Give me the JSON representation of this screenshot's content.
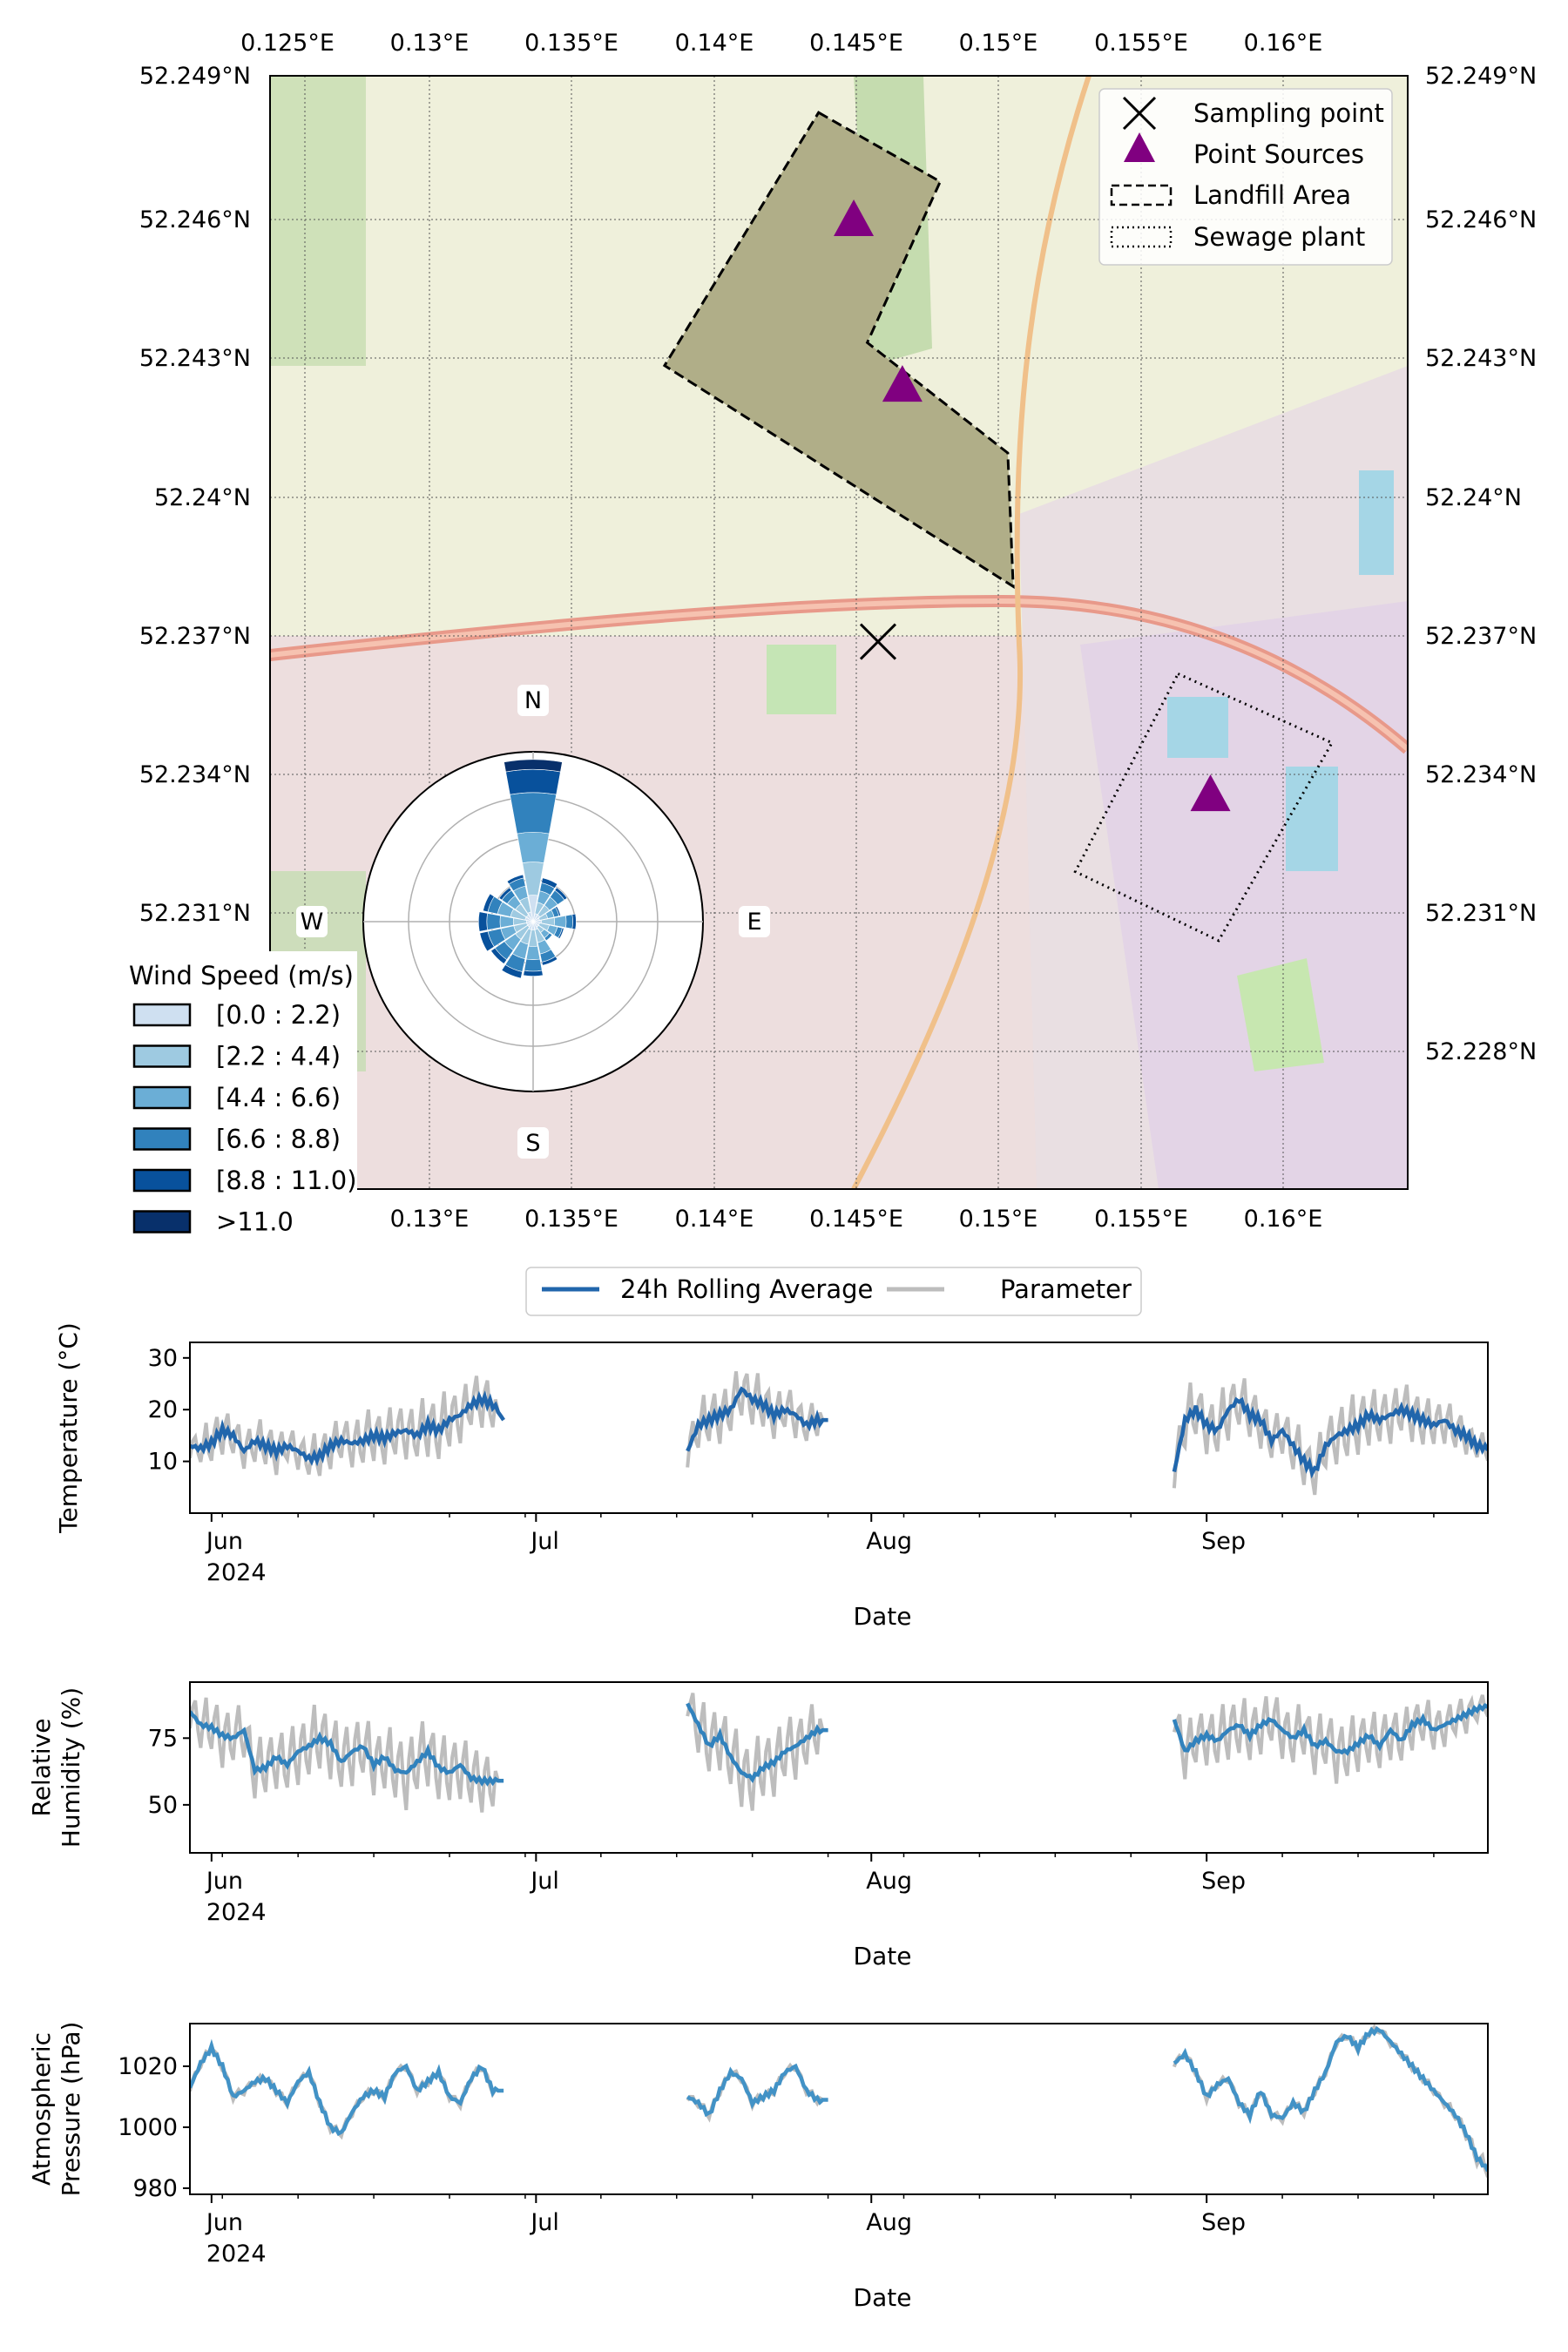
{
  "map": {
    "lon_ticks_top": [
      "0.125°E",
      "0.13°E",
      "0.135°E",
      "0.14°E",
      "0.145°E",
      "0.15°E",
      "0.155°E",
      "0.16°E"
    ],
    "lon_ticks_bottom": [
      "0.13°E",
      "0.135°E",
      "0.14°E",
      "0.145°E",
      "0.15°E",
      "0.155°E",
      "0.16°E"
    ],
    "lat_ticks": [
      "52.249°N",
      "52.246°N",
      "52.243°N",
      "52.24°N",
      "52.237°N",
      "52.234°N",
      "52.231°N",
      "52.228°N"
    ],
    "legend": {
      "sampling_point": "Sampling point",
      "point_sources": "Point Sources",
      "landfill": "Landfill Area",
      "sewage": "Sewage plant"
    },
    "colors": {
      "point_source": "#800080",
      "landfill_fill": "#b0ae88",
      "land": "#edefd9",
      "urban": "#ede0e0",
      "green": "#a8cf91"
    },
    "landfill_polygon": [
      [
        0.1425,
        52.2485
      ],
      [
        0.147,
        52.247
      ],
      [
        0.1443,
        52.2435
      ],
      [
        0.1495,
        52.2411
      ],
      [
        0.1497,
        52.2382
      ],
      [
        0.1368,
        52.243
      ]
    ],
    "sewage_polygon": [
      [
        0.1558,
        52.2363
      ],
      [
        0.1615,
        52.2348
      ],
      [
        0.1573,
        52.2305
      ],
      [
        0.152,
        52.232
      ]
    ],
    "point_sources": [
      [
        0.1438,
        52.2461
      ],
      [
        0.1456,
        52.2425
      ],
      [
        0.157,
        52.2336
      ]
    ],
    "sampling_point": [
      0.1447,
      52.237
    ]
  },
  "windrose": {
    "directions": [
      "N",
      "E",
      "S",
      "W"
    ],
    "legend_title": "Wind Speed (m/s)",
    "bins": [
      "[0.0 : 2.2)",
      "[2.2 : 4.4)",
      "[4.4 : 6.6)",
      "[6.6 : 8.8)",
      "[8.8 : 11.0)",
      ">11.0"
    ],
    "bin_colors": [
      "#cfe0f1",
      "#9ecae1",
      "#6baed6",
      "#3182bd",
      "#08519c",
      "#08306b"
    ],
    "sectors": [
      [
        0.16,
        0.36,
        0.54,
        0.78,
        0.92,
        0.98
      ],
      [
        0.05,
        0.12,
        0.19,
        0.24,
        0.27,
        0.27
      ],
      [
        0.05,
        0.12,
        0.18,
        0.23,
        0.25,
        0.25
      ],
      [
        0.04,
        0.09,
        0.13,
        0.16,
        0.17,
        0.17
      ],
      [
        0.05,
        0.13,
        0.2,
        0.24,
        0.26,
        0.26
      ],
      [
        0.04,
        0.1,
        0.15,
        0.18,
        0.19,
        0.19
      ],
      [
        0.04,
        0.08,
        0.12,
        0.14,
        0.14,
        0.14
      ],
      [
        0.05,
        0.13,
        0.2,
        0.25,
        0.27,
        0.27
      ],
      [
        0.05,
        0.15,
        0.23,
        0.3,
        0.33,
        0.33
      ],
      [
        0.05,
        0.14,
        0.23,
        0.31,
        0.35,
        0.35
      ],
      [
        0.04,
        0.13,
        0.21,
        0.28,
        0.31,
        0.31
      ],
      [
        0.04,
        0.12,
        0.2,
        0.28,
        0.33,
        0.33
      ],
      [
        0.04,
        0.12,
        0.2,
        0.28,
        0.33,
        0.33
      ],
      [
        0.05,
        0.14,
        0.22,
        0.28,
        0.31,
        0.31
      ],
      [
        0.05,
        0.13,
        0.19,
        0.23,
        0.25,
        0.25
      ],
      [
        0.06,
        0.15,
        0.22,
        0.27,
        0.29,
        0.29
      ]
    ]
  },
  "timeseries": {
    "legend": {
      "rolling": "24h Rolling Average",
      "parameter": "Parameter"
    },
    "x_ticks": [
      "Jun\n2024",
      "Jul",
      "Aug",
      "Sep"
    ],
    "xlabel": "Date",
    "date_range": [
      "2024-05-30",
      "2024-09-27"
    ],
    "parameter_color": "#bdbdbd",
    "panels": [
      {
        "ylabel": "Temperature (°C)",
        "yticks": [
          "10",
          "20",
          "30"
        ],
        "ylim": [
          0,
          33
        ],
        "rolling_color": "#2166ac",
        "segments": [
          {
            "start": "2024-05-30",
            "end": "2024-06-27",
            "avg": [
              13,
              12.5,
              13.5,
              16,
              15,
              12,
              14,
              13,
              12,
              13,
              12,
              10.5,
              11,
              13,
              14,
              13.5,
              14,
              15,
              14.5,
              15.5,
              16,
              15,
              17,
              16,
              18,
              19,
              21,
              22,
              21,
              18
            ],
            "amp": [
              3,
              3,
              5,
              5,
              5,
              4,
              5,
              5,
              5,
              4,
              4,
              4,
              5,
              5,
              5,
              5,
              6,
              6,
              6,
              6,
              6,
              6,
              7,
              7,
              7,
              6,
              6,
              6,
              6,
              0
            ]
          },
          {
            "start": "2024-07-15",
            "end": "2024-07-28",
            "avg": [
              12,
              17,
              18,
              19,
              20,
              24,
              22,
              21,
              19,
              20,
              19,
              17,
              18,
              18
            ],
            "amp": [
              4,
              5,
              6,
              6,
              6,
              6,
              6,
              6,
              5,
              5,
              5,
              4,
              4,
              0
            ]
          },
          {
            "start": "2024-08-29",
            "end": "2024-09-27",
            "avg": [
              8,
              18,
              20,
              17,
              16,
              20,
              22,
              19,
              18,
              14,
              16,
              13,
              10,
              8,
              13,
              15,
              16,
              17,
              19,
              18,
              19,
              20,
              19,
              18,
              17,
              18,
              16,
              15,
              13,
              12.5
            ],
            "amp": [
              4,
              6,
              7,
              6,
              6,
              7,
              6,
              6,
              6,
              5,
              5,
              6,
              6,
              5,
              6,
              6,
              7,
              7,
              7,
              6,
              6,
              6,
              6,
              6,
              5,
              5,
              5,
              4,
              3,
              3
            ]
          }
        ]
      },
      {
        "ylabel": "Relative Humidity (%)",
        "yticks": [
          "50",
          "75"
        ],
        "ylim": [
          32,
          96
        ],
        "rolling_color": "#3182bd",
        "segments": [
          {
            "start": "2024-05-30",
            "end": "2024-06-27",
            "avg": [
              85,
              80,
              79,
              76,
              75,
              78,
              63,
              64,
              68,
              65,
              70,
              72,
              75,
              73,
              66,
              70,
              72,
              65,
              68,
              63,
              62,
              66,
              70,
              64,
              62,
              65,
              60,
              59,
              59,
              59
            ],
            "amp": [
              8,
              10,
              12,
              13,
              12,
              12,
              13,
              13,
              13,
              13,
              14,
              14,
              15,
              15,
              14,
              14,
              14,
              14,
              14,
              15,
              15,
              15,
              15,
              15,
              14,
              14,
              14,
              13,
              13,
              0
            ]
          },
          {
            "start": "2024-07-15",
            "end": "2024-07-28",
            "avg": [
              88,
              80,
              72,
              76,
              68,
              62,
              60,
              64,
              66,
              70,
              72,
              75,
              78,
              78
            ],
            "amp": [
              6,
              12,
              14,
              14,
              15,
              15,
              15,
              15,
              14,
              14,
              14,
              13,
              12,
              0
            ]
          },
          {
            "start": "2024-08-29",
            "end": "2024-09-27",
            "avg": [
              82,
              70,
              74,
              76,
              74,
              78,
              80,
              76,
              80,
              82,
              78,
              75,
              78,
              72,
              74,
              70,
              70,
              73,
              76,
              72,
              78,
              74,
              80,
              82,
              78,
              80,
              82,
              84,
              86,
              87
            ],
            "amp": [
              6,
              12,
              12,
              12,
              12,
              13,
              13,
              13,
              12,
              12,
              12,
              12,
              12,
              12,
              13,
              13,
              13,
              13,
              12,
              12,
              12,
              11,
              11,
              10,
              10,
              9,
              8,
              8,
              6,
              5
            ]
          }
        ]
      },
      {
        "ylabel": "Atmospheric Pressure (hPa)",
        "yticks": [
          "980",
          "1000",
          "1020"
        ],
        "ylim": [
          978,
          1034
        ],
        "rolling_color": "#4292c6",
        "segments": [
          {
            "start": "2024-05-30",
            "end": "2024-06-27",
            "avg": [
              1013,
              1021,
              1026,
              1020,
              1010,
              1012,
              1015,
              1016,
              1012,
              1008,
              1015,
              1018,
              1008,
              1000,
              998,
              1005,
              1010,
              1012,
              1010,
              1018,
              1020,
              1012,
              1015,
              1018,
              1010,
              1008,
              1016,
              1020,
              1012,
              1012
            ],
            "amp": [
              1.5,
              1.5,
              1.5,
              1.5,
              1.5,
              1.5,
              1.5,
              1.5,
              1.5,
              1.5,
              1.5,
              1.5,
              1.5,
              1.5,
              1.5,
              1.5,
              1.5,
              1.5,
              1.5,
              1.5,
              1.5,
              1.5,
              1.5,
              1.5,
              1.5,
              1.5,
              1.5,
              1.5,
              1.5,
              0
            ]
          },
          {
            "start": "2024-07-15",
            "end": "2024-07-28",
            "avg": [
              1010,
              1008,
              1004,
              1012,
              1018,
              1016,
              1008,
              1010,
              1012,
              1018,
              1020,
              1012,
              1009,
              1009
            ],
            "amp": [
              1.5,
              1.5,
              1.5,
              1.5,
              1.5,
              1.5,
              1.5,
              1.5,
              1.5,
              1.5,
              1.5,
              1.5,
              1.5,
              0
            ]
          },
          {
            "start": "2024-08-29",
            "end": "2024-09-27",
            "avg": [
              1021,
              1024,
              1018,
              1010,
              1014,
              1016,
              1008,
              1004,
              1012,
              1004,
              1003,
              1008,
              1005,
              1012,
              1018,
              1028,
              1030,
              1026,
              1031,
              1032,
              1028,
              1024,
              1020,
              1016,
              1012,
              1008,
              1004,
              998,
              990,
              986
            ],
            "amp": [
              1.5,
              1.5,
              1.5,
              1.5,
              1.5,
              1.5,
              1.5,
              1.5,
              1.5,
              1.5,
              1.5,
              1.5,
              1.5,
              1.5,
              1.5,
              1.5,
              1.5,
              1.5,
              1.5,
              1.5,
              1.5,
              1.5,
              1.5,
              1.5,
              1.5,
              1.5,
              2,
              2,
              3,
              3
            ]
          }
        ]
      }
    ]
  },
  "chart_data": [
    {
      "type": "map",
      "lon_range": [
        0.1222,
        0.1643
      ],
      "lat_range": [
        52.2251,
        52.2493
      ],
      "markers": {
        "Sampling point": [
          [
            0.1447,
            52.237
          ]
        ],
        "Point Sources": [
          [
            0.1438,
            52.2461
          ],
          [
            0.1456,
            52.2425
          ],
          [
            0.157,
            52.2336
          ]
        ]
      }
    },
    {
      "type": "windrose",
      "legend_title": "Wind Speed (m/s)",
      "bins": [
        "[0.0 : 2.2)",
        "[2.2 : 4.4)",
        "[4.4 : 6.6)",
        "[6.6 : 8.8)",
        "[8.8 : 11.0)",
        ">11.0"
      ],
      "directions": [
        "N",
        "E",
        "S",
        "W"
      ]
    },
    {
      "type": "line",
      "series": [
        {
          "name": "24h Rolling Average"
        },
        {
          "name": "Parameter"
        }
      ],
      "panels": [
        "Temperature (°C)",
        "Relative Humidity (%)",
        "Atmospheric Pressure (hPa)"
      ],
      "xlabel": "Date",
      "x_range": [
        "2024-05-30",
        "2024-09-27"
      ]
    }
  ]
}
